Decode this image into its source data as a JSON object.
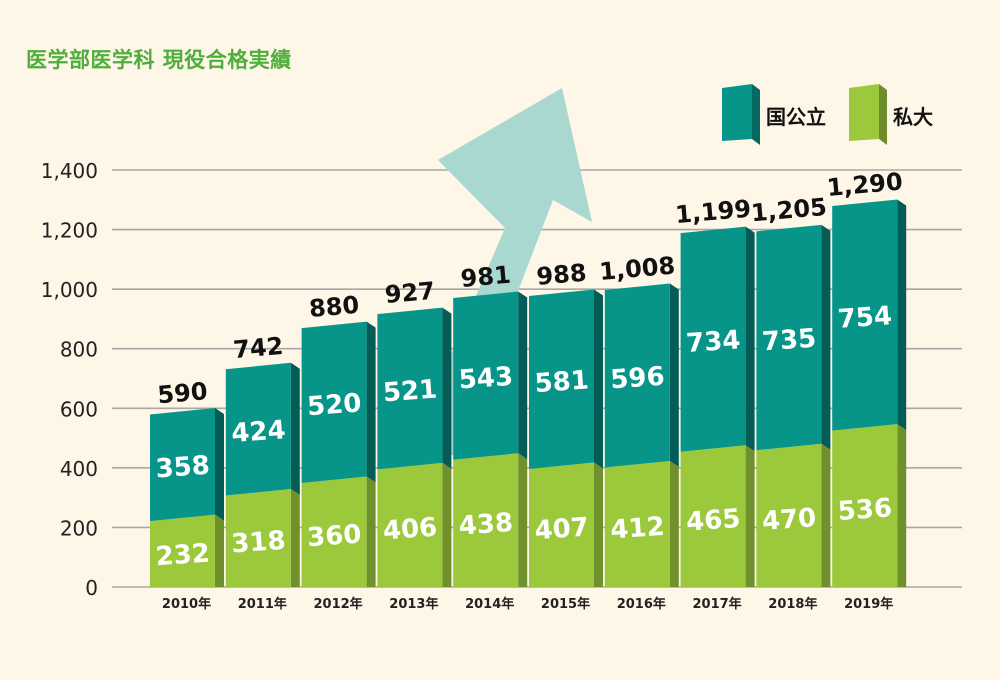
{
  "title": "医学部医学科 現役合格実績",
  "chart_data": {
    "type": "bar",
    "stacked": true,
    "categories": [
      "2010年",
      "2011年",
      "2012年",
      "2013年",
      "2014年",
      "2015年",
      "2016年",
      "2017年",
      "2018年",
      "2019年"
    ],
    "series": [
      {
        "name": "私大",
        "values": [
          232,
          318,
          360,
          406,
          438,
          407,
          412,
          465,
          470,
          536
        ],
        "color": "#9cc83c"
      },
      {
        "name": "国公立",
        "values": [
          358,
          424,
          520,
          521,
          543,
          581,
          596,
          734,
          735,
          754
        ],
        "color": "#07958a"
      }
    ],
    "totals": [
      "590",
      "742",
      "880",
      "927",
      "981",
      "988",
      "1,008",
      "1,199",
      "1,205",
      "1,290"
    ],
    "ylim": [
      0,
      1400
    ],
    "yticks": [
      "0",
      "200",
      "400",
      "600",
      "800",
      "1,000",
      "1,200",
      "1,400"
    ],
    "grid": true,
    "legend_position": "top-right",
    "colors": {
      "background": "#fef6e6",
      "national_public": "#07958a",
      "private": "#9cc83c",
      "arrow": "#a8d8cf",
      "title": "#4fae3c"
    }
  }
}
